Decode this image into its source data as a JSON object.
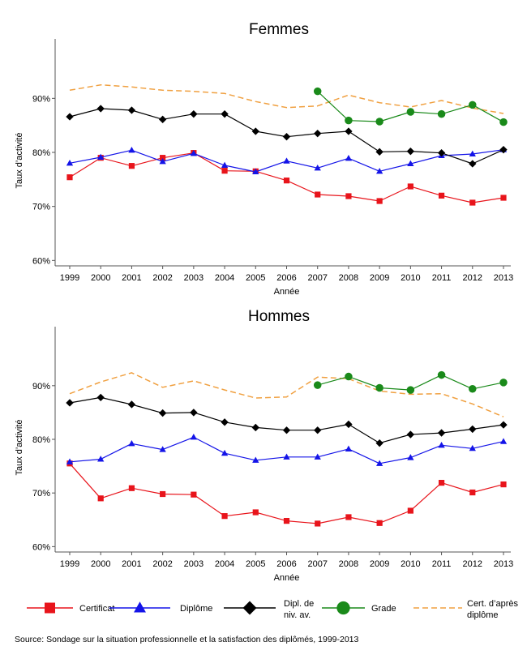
{
  "source_text": "Source:   Sondage sur la situation professionnelle et la satisfaction des diplômés, 1999-2013",
  "legend": [
    {
      "key": "certificat",
      "label": "Certificat",
      "marker": "square"
    },
    {
      "key": "diplome",
      "label": "Diplôme",
      "marker": "triangle"
    },
    {
      "key": "dipl_av",
      "label": "Dipl. de",
      "label2": "niv. av.",
      "marker": "diamond"
    },
    {
      "key": "grade",
      "label": "Grade",
      "marker": "circle"
    },
    {
      "key": "cert_apres",
      "label": "Cert. d’après",
      "label2": "diplôme",
      "marker": "dash"
    }
  ],
  "colors": {
    "certificat": "#e8141b",
    "diplome": "#1414e8",
    "dipl_av": "#000000",
    "grade": "#1a8a1a",
    "cert_apres": "#f0a040",
    "axis": "#555555"
  },
  "chart_data": [
    {
      "type": "line",
      "title": "Femmes",
      "xlabel": "Année",
      "ylabel": "Taux d’activité",
      "ylim": [
        59,
        101
      ],
      "yticks": [
        60,
        70,
        80,
        90
      ],
      "ytick_labels": [
        "60%",
        "70%",
        "80%",
        "90%"
      ],
      "x": [
        1999,
        2000,
        2001,
        2002,
        2003,
        2004,
        2005,
        2006,
        2007,
        2008,
        2009,
        2010,
        2011,
        2012,
        2013
      ],
      "series": [
        {
          "key": "certificat",
          "name": "Certificat",
          "values": [
            75.4,
            79.0,
            77.5,
            79.0,
            79.9,
            76.6,
            76.5,
            74.8,
            72.2,
            71.9,
            71.0,
            73.7,
            72.0,
            70.7,
            71.6
          ]
        },
        {
          "key": "diplome",
          "name": "Diplôme",
          "values": [
            78.0,
            79.1,
            80.4,
            78.3,
            79.8,
            77.6,
            76.4,
            78.4,
            77.1,
            78.9,
            76.5,
            77.9,
            79.4,
            79.7,
            80.5
          ]
        },
        {
          "key": "dipl_av",
          "name": "Dipl. de niv. av.",
          "values": [
            86.6,
            88.1,
            87.8,
            86.1,
            87.1,
            87.1,
            83.9,
            82.9,
            83.5,
            83.9,
            80.1,
            80.2,
            79.9,
            77.9,
            80.5
          ]
        },
        {
          "key": "grade",
          "name": "Grade",
          "values": [
            null,
            null,
            null,
            null,
            null,
            null,
            null,
            null,
            91.3,
            85.9,
            85.7,
            87.5,
            87.1,
            88.8,
            85.6
          ]
        },
        {
          "key": "cert_apres",
          "name": "Cert. d’après diplôme",
          "values": [
            91.5,
            92.5,
            92.1,
            91.5,
            91.3,
            90.9,
            89.4,
            88.3,
            88.6,
            90.6,
            89.2,
            88.4,
            89.6,
            88.2,
            87.2
          ]
        }
      ]
    },
    {
      "type": "line",
      "title": "Hommes",
      "xlabel": "Année",
      "ylabel": "Taux d’activité",
      "ylim": [
        59,
        101
      ],
      "yticks": [
        60,
        70,
        80,
        90
      ],
      "ytick_labels": [
        "60%",
        "70%",
        "80%",
        "90%"
      ],
      "x": [
        1999,
        2000,
        2001,
        2002,
        2003,
        2004,
        2005,
        2006,
        2007,
        2008,
        2009,
        2010,
        2011,
        2012,
        2013
      ],
      "series": [
        {
          "key": "certificat",
          "name": "Certificat",
          "values": [
            75.5,
            69.0,
            70.9,
            69.8,
            69.7,
            65.7,
            66.4,
            64.8,
            64.3,
            65.5,
            64.4,
            66.7,
            71.9,
            70.1,
            71.6
          ]
        },
        {
          "key": "diplome",
          "name": "Diplôme",
          "values": [
            75.8,
            76.3,
            79.2,
            78.1,
            80.4,
            77.4,
            76.1,
            76.7,
            76.7,
            78.2,
            75.5,
            76.6,
            78.9,
            78.3,
            79.6
          ]
        },
        {
          "key": "dipl_av",
          "name": "Dipl. de niv. av.",
          "values": [
            86.8,
            87.8,
            86.5,
            84.9,
            85.0,
            83.2,
            82.2,
            81.7,
            81.7,
            82.8,
            79.3,
            80.9,
            81.2,
            81.9,
            82.7
          ]
        },
        {
          "key": "grade",
          "name": "Grade",
          "values": [
            null,
            null,
            null,
            null,
            null,
            null,
            null,
            null,
            90.1,
            91.7,
            89.6,
            89.2,
            92.0,
            89.4,
            90.6
          ]
        },
        {
          "key": "cert_apres",
          "name": "Cert. d’après diplôme",
          "values": [
            88.5,
            90.7,
            92.4,
            89.7,
            90.9,
            89.2,
            87.7,
            87.9,
            91.6,
            91.3,
            89.0,
            88.4,
            88.5,
            86.6,
            84.2
          ]
        }
      ]
    }
  ]
}
